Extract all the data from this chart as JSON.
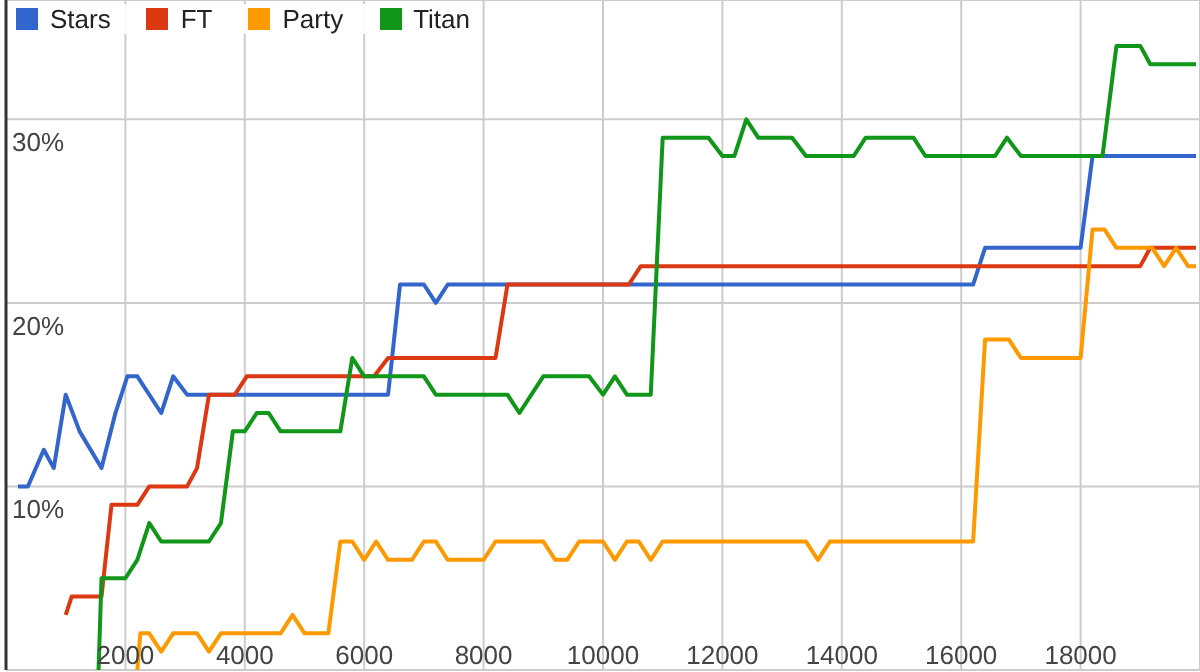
{
  "chart_data": {
    "type": "line",
    "xlim": [
      0,
      20000
    ],
    "xticks": [
      2000,
      4000,
      6000,
      8000,
      10000,
      12000,
      14000,
      16000,
      18000
    ],
    "ylim": [
      0,
      36.5
    ],
    "yticks": [
      {
        "value": 10,
        "label": "10%"
      },
      {
        "value": 20,
        "label": "20%"
      },
      {
        "value": 30,
        "label": "30%"
      }
    ],
    "grid": true,
    "legend": "top left",
    "marker": "none",
    "line_style": "solid",
    "series": [
      {
        "name": "Stars",
        "color": "#3366cc",
        "x": [
          200,
          367,
          633,
          800,
          1000,
          1233,
          1600,
          1833,
          2033,
          2200,
          2600,
          2800,
          3033,
          6400,
          6600,
          7000,
          7200,
          7400,
          16200,
          16400,
          18000,
          18200,
          19933
        ],
        "values": [
          10,
          10,
          12,
          11,
          15,
          13,
          11,
          14,
          16,
          16,
          14,
          16,
          15,
          15,
          21,
          21,
          20,
          21,
          21,
          23,
          23,
          28,
          28
        ]
      },
      {
        "name": "FT",
        "color": "#dc3912",
        "x": [
          1000,
          1100,
          1600,
          1767,
          2200,
          2400,
          3033,
          3200,
          3400,
          3833,
          4033,
          6167,
          6400,
          8200,
          8400,
          10433,
          10633,
          19000,
          19167,
          19933
        ],
        "values": [
          3,
          4,
          4,
          9,
          9,
          10,
          10,
          11,
          15,
          15,
          16,
          16,
          17,
          17,
          21,
          21,
          22,
          22,
          23,
          23
        ]
      },
      {
        "name": "Party",
        "color": "#ff9900",
        "x": [
          2200,
          2250,
          2400,
          2600,
          2800,
          3200,
          3400,
          3600,
          4600,
          4800,
          5000,
          5400,
          5600,
          5800,
          6000,
          6200,
          6400,
          6800,
          7000,
          7200,
          7400,
          8000,
          8200,
          9000,
          9200,
          9400,
          9600,
          10000,
          10200,
          10400,
          10600,
          10800,
          11000,
          13400,
          13600,
          13800,
          16200,
          16400,
          16800,
          17000,
          18000,
          18200,
          18400,
          18600,
          19200,
          19400,
          19600,
          19800,
          19933
        ],
        "values": [
          0,
          2,
          2,
          1,
          2,
          2,
          1,
          2,
          2,
          3,
          2,
          2,
          7,
          7,
          6,
          7,
          6,
          6,
          7,
          7,
          6,
          6,
          7,
          7,
          6,
          6,
          7,
          7,
          6,
          7,
          7,
          6,
          7,
          7,
          6,
          7,
          7,
          18,
          18,
          17,
          17,
          24,
          24,
          23,
          23,
          22,
          23,
          22,
          22
        ]
      },
      {
        "name": "Titan",
        "color": "#109618",
        "x": [
          1550,
          1600,
          2000,
          2200,
          2400,
          2600,
          3400,
          3600,
          3800,
          4000,
          4200,
          4400,
          4600,
          5600,
          5800,
          6000,
          7000,
          7200,
          8400,
          8600,
          9000,
          9767,
          10000,
          10200,
          10400,
          10800,
          11000,
          11767,
          12000,
          12200,
          12400,
          12600,
          13167,
          13400,
          14200,
          14400,
          15200,
          15400,
          16567,
          16767,
          17000,
          18367,
          18600,
          19000,
          19167,
          19933
        ],
        "values": [
          0,
          5,
          5,
          6,
          8,
          7,
          7,
          8,
          13,
          13,
          14,
          14,
          13,
          13,
          17,
          16,
          16,
          15,
          15,
          14,
          16,
          16,
          15,
          16,
          15,
          15,
          29,
          29,
          28,
          28,
          30,
          29,
          29,
          28,
          28,
          29,
          29,
          28,
          28,
          29,
          28,
          28,
          34,
          34,
          33,
          33
        ]
      }
    ]
  }
}
